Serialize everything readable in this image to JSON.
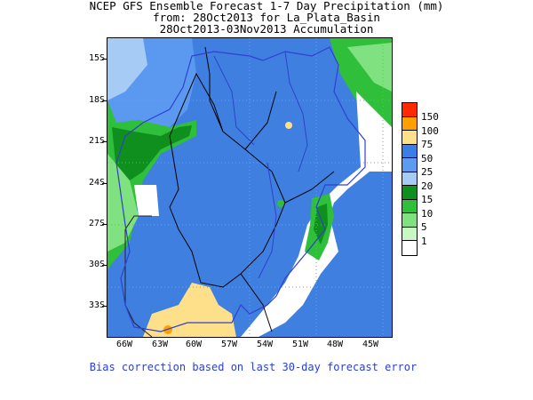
{
  "title": {
    "line1": "NCEP GFS Ensemble Forecast 1-7 Day Precipitation (mm)",
    "line2": "from: 28Oct2013   for La_Plata_Basin",
    "line3": "28Oct2013-03Nov2013 Accumulation"
  },
  "axes": {
    "lat_labels": [
      "15S",
      "18S",
      "21S",
      "24S",
      "27S",
      "30S",
      "33S"
    ],
    "lon_labels": [
      "66W",
      "63W",
      "60W",
      "57W",
      "54W",
      "51W",
      "48W",
      "45W"
    ]
  },
  "legend": {
    "levels": [
      {
        "label": "150",
        "color": "#ff2a00"
      },
      {
        "label": "100",
        "color": "#ffa000"
      },
      {
        "label": "75",
        "color": "#ffe08a"
      },
      {
        "label": "50",
        "color": "#3a7ee6"
      },
      {
        "label": "25",
        "color": "#5c9cf0"
      },
      {
        "label": "20",
        "color": "#a6ccf6"
      },
      {
        "label": "15",
        "color": "#0e8f1e"
      },
      {
        "label": "10",
        "color": "#2fbf3a"
      },
      {
        "label": "5",
        "color": "#7fe17f"
      },
      {
        "label": "1",
        "color": "#c8f7c4"
      },
      {
        "label": "",
        "color": "#ffffff"
      }
    ]
  },
  "footer": "Bias correction based on last 30-day forecast error"
}
